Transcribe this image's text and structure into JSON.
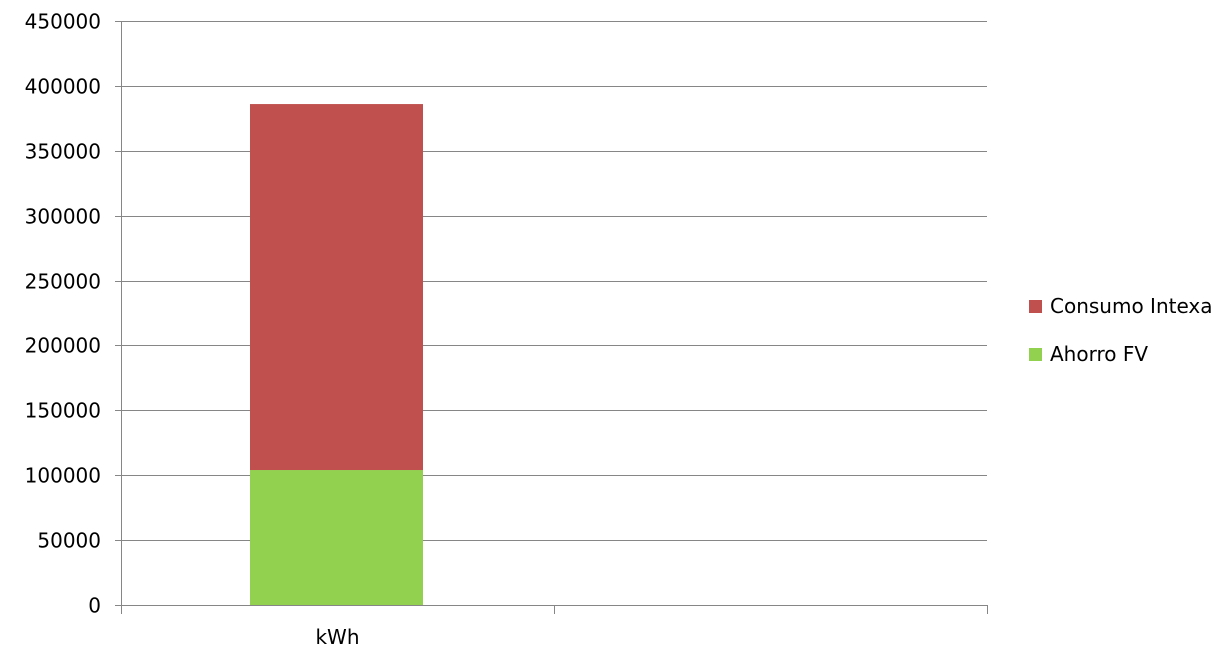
{
  "chart_data": {
    "type": "bar",
    "stacked": true,
    "categories": [
      "kWh"
    ],
    "series": [
      {
        "name": "Ahorro FV",
        "values": [
          104000
        ],
        "color": "#92d050"
      },
      {
        "name": "Consumo Intexa",
        "values": [
          282000
        ],
        "color": "#c0504d"
      }
    ],
    "legend_order": [
      "Consumo Intexa",
      "Ahorro FV"
    ],
    "ylim": [
      0,
      450000
    ],
    "y_ticks": [
      "0",
      "50000",
      "100000",
      "150000",
      "200000",
      "250000",
      "300000",
      "350000",
      "400000",
      "450000"
    ],
    "x_slots": 2,
    "grid": true,
    "legend_position": "right",
    "gridline_color": "#868686",
    "axis_color": "#868686"
  }
}
